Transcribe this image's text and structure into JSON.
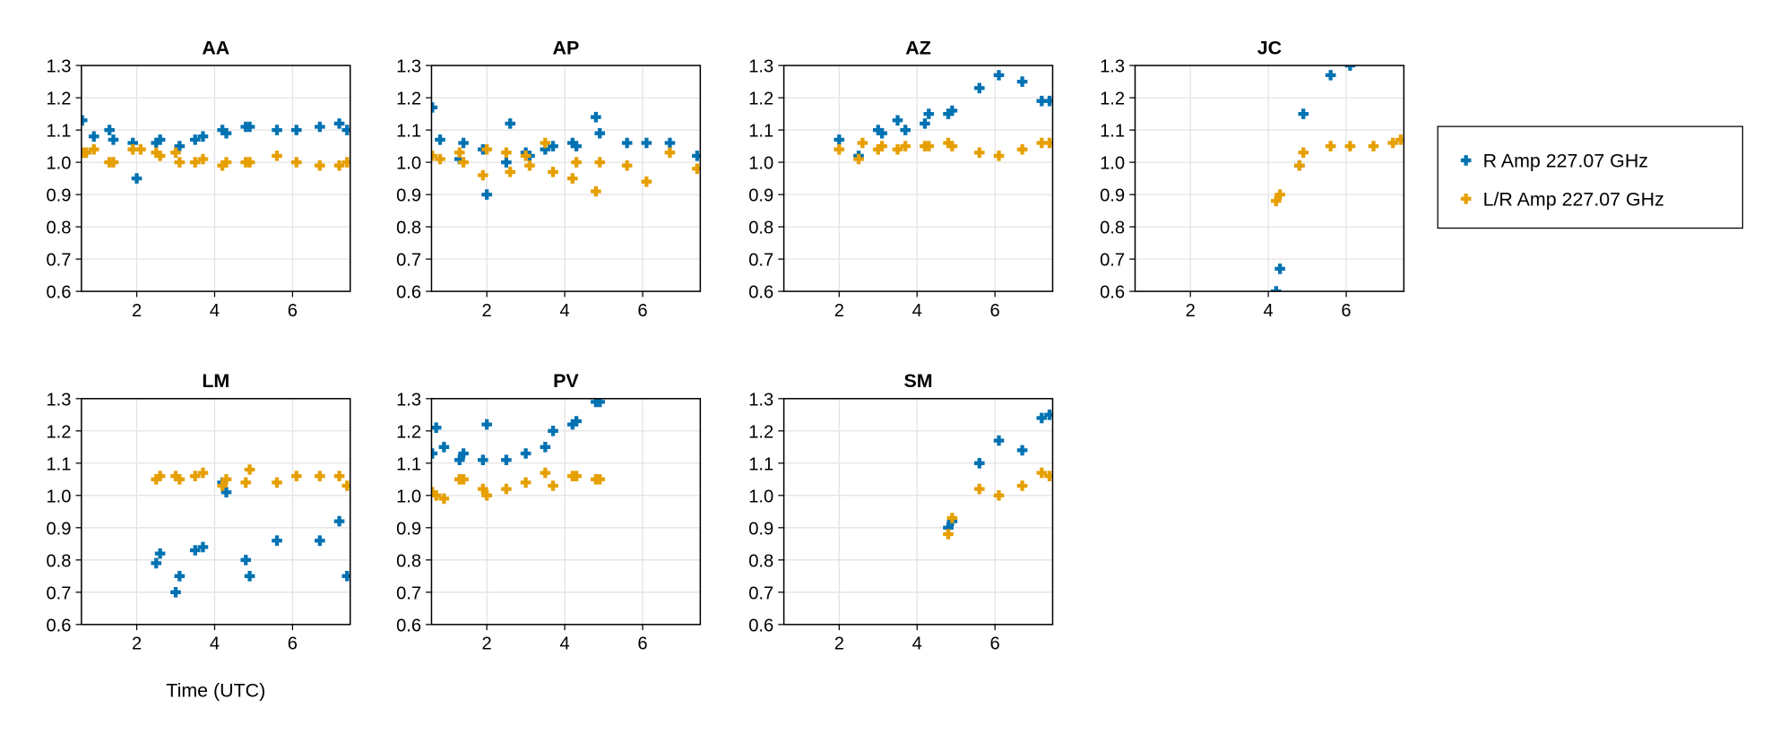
{
  "chart_data": {
    "type": "scatter",
    "xlabel": "Time (UTC)",
    "xlim": [
      0.58,
      7.48
    ],
    "ylim": [
      0.6,
      1.3
    ],
    "xticks": [
      2,
      4,
      6
    ],
    "yticks": [
      0.6,
      0.7,
      0.8,
      0.9,
      1.0,
      1.1,
      1.2,
      1.3
    ],
    "ytick_labels": [
      "0.6",
      "0.7",
      "0.8",
      "0.9",
      "1.0",
      "1.1",
      "1.2",
      "1.3"
    ],
    "grid": true,
    "legend": {
      "placement": "right",
      "entries": [
        "R Amp 227.07 GHz",
        "L/R Amp 227.07 GHz"
      ]
    },
    "colors": {
      "R Amp 227.07 GHz": "#0072B2",
      "L/R Amp 227.07 GHz": "#E69F00"
    },
    "panels": [
      {
        "title": "AA",
        "series": [
          {
            "name": "R Amp 227.07 GHz",
            "x": [
              0.6,
              0.7,
              0.9,
              1.3,
              1.4,
              1.9,
              2.0,
              2.5,
              2.6,
              3.1,
              3.5,
              3.7,
              4.2,
              4.3,
              4.8,
              4.9,
              5.6,
              6.1,
              6.7,
              7.2,
              7.4
            ],
            "y": [
              1.13,
              1.03,
              1.08,
              1.1,
              1.07,
              1.06,
              0.95,
              1.06,
              1.07,
              1.05,
              1.07,
              1.08,
              1.1,
              1.09,
              1.11,
              1.11,
              1.1,
              1.1,
              1.11,
              1.12,
              1.1
            ]
          },
          {
            "name": "L/R Amp 227.07 GHz",
            "x": [
              0.6,
              0.7,
              0.9,
              1.3,
              1.4,
              1.9,
              2.1,
              2.5,
              2.6,
              3.0,
              3.1,
              3.5,
              3.7,
              4.2,
              4.3,
              4.8,
              4.9,
              5.6,
              6.1,
              6.7,
              7.2,
              7.4
            ],
            "y": [
              1.03,
              1.03,
              1.04,
              1.0,
              1.0,
              1.04,
              1.04,
              1.03,
              1.02,
              1.03,
              1.0,
              1.0,
              1.01,
              0.99,
              1.0,
              1.0,
              1.0,
              1.02,
              1.0,
              0.99,
              0.99,
              1.0
            ]
          }
        ]
      },
      {
        "title": "AP",
        "series": [
          {
            "name": "R Amp 227.07 GHz",
            "x": [
              0.6,
              0.8,
              1.3,
              1.4,
              1.9,
              2.0,
              2.5,
              2.6,
              3.0,
              3.1,
              3.5,
              3.7,
              4.2,
              4.3,
              4.8,
              4.9,
              5.6,
              6.1,
              6.7,
              7.4
            ],
            "y": [
              1.17,
              1.07,
              1.01,
              1.06,
              1.04,
              0.9,
              1.0,
              1.12,
              1.03,
              1.02,
              1.04,
              1.05,
              1.06,
              1.05,
              1.14,
              1.09,
              1.06,
              1.06,
              1.06,
              1.02
            ]
          },
          {
            "name": "L/R Amp 227.07 GHz",
            "x": [
              0.6,
              0.8,
              1.3,
              1.4,
              1.9,
              2.0,
              2.5,
              2.6,
              3.0,
              3.1,
              3.5,
              3.7,
              4.2,
              4.3,
              4.8,
              4.9,
              5.6,
              6.1,
              6.7,
              7.4
            ],
            "y": [
              1.02,
              1.01,
              1.03,
              1.0,
              0.96,
              1.04,
              1.03,
              0.97,
              1.02,
              0.99,
              1.06,
              0.97,
              0.95,
              1.0,
              0.91,
              1.0,
              0.99,
              0.94,
              1.03,
              0.98
            ]
          }
        ]
      },
      {
        "title": "AZ",
        "series": [
          {
            "name": "R Amp 227.07 GHz",
            "x": [
              2.0,
              2.5,
              3.0,
              3.1,
              3.5,
              3.7,
              4.2,
              4.3,
              4.8,
              4.9,
              5.6,
              6.1,
              6.7,
              7.2,
              7.4
            ],
            "y": [
              1.07,
              1.02,
              1.1,
              1.09,
              1.13,
              1.1,
              1.12,
              1.15,
              1.15,
              1.16,
              1.23,
              1.27,
              1.25,
              1.19,
              1.19
            ]
          },
          {
            "name": "L/R Amp 227.07 GHz",
            "x": [
              2.0,
              2.5,
              2.6,
              3.0,
              3.1,
              3.5,
              3.7,
              4.2,
              4.3,
              4.8,
              4.9,
              5.6,
              6.1,
              6.7,
              7.2,
              7.4
            ],
            "y": [
              1.04,
              1.01,
              1.06,
              1.04,
              1.05,
              1.04,
              1.05,
              1.05,
              1.05,
              1.06,
              1.05,
              1.03,
              1.02,
              1.04,
              1.06,
              1.06
            ]
          }
        ]
      },
      {
        "title": "JC",
        "series": [
          {
            "name": "R Amp 227.07 GHz",
            "x": [
              4.2,
              4.3,
              4.8,
              4.9,
              5.6,
              6.1
            ],
            "y": [
              0.6,
              0.67,
              0.99,
              1.15,
              1.27,
              1.3
            ]
          },
          {
            "name": "L/R Amp 227.07 GHz",
            "x": [
              4.2,
              4.3,
              4.8,
              4.9,
              5.6,
              6.1,
              6.7,
              7.2,
              7.4
            ],
            "y": [
              0.88,
              0.9,
              0.99,
              1.03,
              1.05,
              1.05,
              1.05,
              1.06,
              1.07
            ]
          }
        ]
      },
      {
        "title": "LM",
        "series": [
          {
            "name": "R Amp 227.07 GHz",
            "x": [
              2.5,
              2.6,
              3.0,
              3.1,
              3.5,
              3.7,
              4.2,
              4.3,
              4.8,
              4.9,
              5.6,
              6.7,
              7.2,
              7.4
            ],
            "y": [
              0.79,
              0.82,
              0.7,
              0.75,
              0.83,
              0.84,
              1.04,
              1.01,
              0.8,
              0.75,
              0.86,
              0.86,
              0.92,
              0.75
            ]
          },
          {
            "name": "L/R Amp 227.07 GHz",
            "x": [
              2.5,
              2.6,
              3.0,
              3.1,
              3.5,
              3.7,
              4.2,
              4.3,
              4.8,
              4.9,
              5.6,
              6.1,
              6.7,
              7.2,
              7.4
            ],
            "y": [
              1.05,
              1.06,
              1.06,
              1.05,
              1.06,
              1.07,
              1.03,
              1.05,
              1.04,
              1.08,
              1.04,
              1.06,
              1.06,
              1.06,
              1.03
            ]
          }
        ]
      },
      {
        "title": "PV",
        "series": [
          {
            "name": "R Amp 227.07 GHz",
            "x": [
              0.6,
              0.7,
              0.9,
              1.3,
              1.4,
              1.9,
              2.0,
              2.5,
              3.0,
              3.5,
              3.7,
              4.2,
              4.3,
              4.8,
              4.9
            ],
            "y": [
              1.13,
              1.21,
              1.15,
              1.11,
              1.13,
              1.11,
              1.22,
              1.11,
              1.13,
              1.15,
              1.2,
              1.22,
              1.23,
              1.29,
              1.29
            ]
          },
          {
            "name": "L/R Amp 227.07 GHz",
            "x": [
              0.6,
              0.7,
              0.9,
              1.3,
              1.4,
              1.9,
              2.0,
              2.5,
              3.0,
              3.5,
              3.7,
              4.2,
              4.3,
              4.8,
              4.9
            ],
            "y": [
              1.01,
              1.0,
              0.99,
              1.05,
              1.05,
              1.02,
              1.0,
              1.02,
              1.04,
              1.07,
              1.03,
              1.06,
              1.06,
              1.05,
              1.05
            ]
          }
        ]
      },
      {
        "title": "SM",
        "series": [
          {
            "name": "R Amp 227.07 GHz",
            "x": [
              4.8,
              4.9,
              5.6,
              6.1,
              6.7,
              7.2,
              7.4
            ],
            "y": [
              0.9,
              0.92,
              1.1,
              1.17,
              1.14,
              1.24,
              1.25
            ]
          },
          {
            "name": "L/R Amp 227.07 GHz",
            "x": [
              4.8,
              4.9,
              5.6,
              6.1,
              6.7,
              7.2,
              7.4
            ],
            "y": [
              0.88,
              0.93,
              1.02,
              1.0,
              1.03,
              1.07,
              1.06
            ]
          }
        ]
      }
    ]
  }
}
